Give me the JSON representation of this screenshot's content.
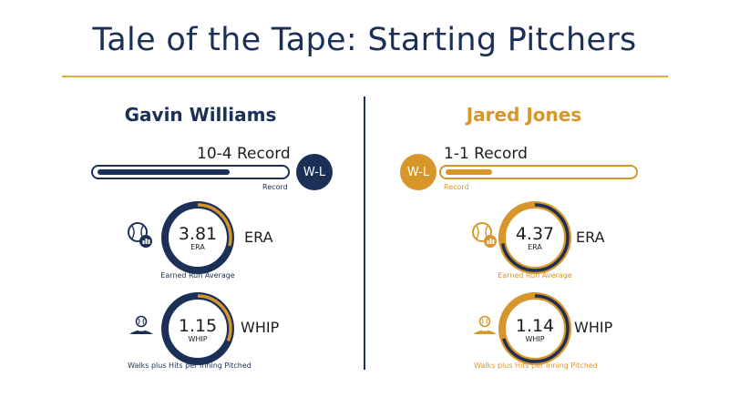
{
  "title": "Tale of the Tape: Starting Pitchers",
  "colors": {
    "navy": "#1b2f57",
    "gold": "#d6962a",
    "gold_light": "#dfad3e"
  },
  "left": {
    "name": "Gavin Williams",
    "record_text": "10-4 Record",
    "badge": "W-L",
    "record_caption": "Record",
    "record_fill_fraction": 0.71,
    "era": {
      "value": "3.81",
      "unit": "ERA",
      "label": "ERA",
      "caption": "Earned Run Average",
      "ring_fraction": 0.29
    },
    "whip": {
      "value": "1.15",
      "unit": "WHIP",
      "label": "WHIP",
      "caption": "Walks plus Hits per Inning Pitched",
      "ring_fraction": 0.31
    },
    "icons": {
      "era": "baseball-chart-icon",
      "whip": "pitcher-mound-icon"
    }
  },
  "right": {
    "name": "Jared Jones",
    "record_text": "1-1 Record",
    "badge": "W-L",
    "record_caption": "Record",
    "record_fill_fraction": 0.25,
    "era": {
      "value": "4.37",
      "unit": "ERA",
      "label": "ERA",
      "caption": "Earned Run Average",
      "ring_fraction": 0.72
    },
    "whip": {
      "value": "1.14",
      "unit": "WHIP",
      "label": "WHIP",
      "caption": "Walks plus Hits per Inning Pitched",
      "ring_fraction": 0.7
    },
    "icons": {
      "era": "baseball-chart-icon",
      "whip": "pitcher-mound-icon"
    }
  }
}
